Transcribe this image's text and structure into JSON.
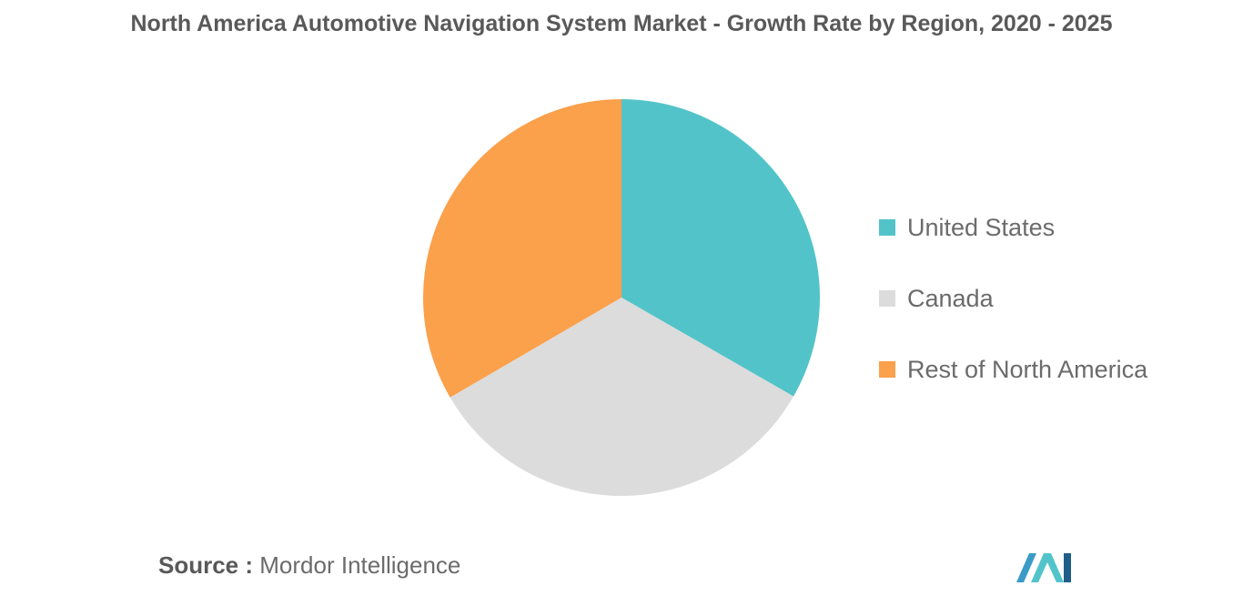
{
  "chart_data": {
    "type": "pie",
    "title": "North America Automotive Navigation System Market - Growth Rate by Region, 2020 - 2025",
    "slices": [
      {
        "label": "United States",
        "value": 33.3,
        "color": "#52C4C9"
      },
      {
        "label": "Canada",
        "value": 33.3,
        "color": "#DCDCDC"
      },
      {
        "label": "Rest of North America",
        "value": 33.4,
        "color": "#FBA04B"
      }
    ],
    "legend_position": "right"
  },
  "source": {
    "prefix": "Source :",
    "name": "Mordor Intelligence"
  },
  "logo": {
    "colors": [
      "#3A9BC7",
      "#52C4C9",
      "#1E5E88"
    ]
  }
}
